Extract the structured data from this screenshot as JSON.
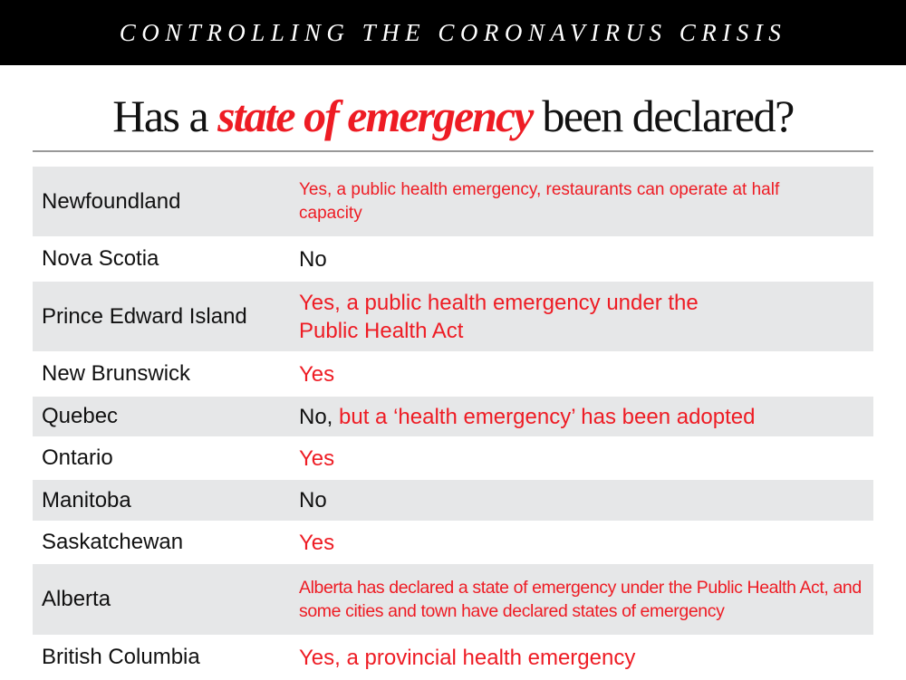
{
  "banner": "CONTROLLING THE CORONAVIRUS CRISIS",
  "title": {
    "before": "Has a ",
    "highlight": "state of emergency",
    "after": " been declared?"
  },
  "colors": {
    "accent": "#ee1c24",
    "row_shade": "#e6e7e8"
  },
  "rows": [
    {
      "province": "Newfoundland",
      "answer": "Yes, a public health emergency, restaurants can operate at half capacity"
    },
    {
      "province": "Nova Scotia",
      "answer": "No"
    },
    {
      "province": "Prince Edward Island",
      "answer": "Yes, a public health emergency under the Public Health Act"
    },
    {
      "province": "New Brunswick",
      "answer": "Yes"
    },
    {
      "province": "Quebec",
      "answer_prefix": "No,",
      "answer": " but a ‘health emergency’ has been adopted"
    },
    {
      "province": "Ontario",
      "answer": "Yes"
    },
    {
      "province": "Manitoba",
      "answer": "No"
    },
    {
      "province": "Saskatchewan",
      "answer": "Yes"
    },
    {
      "province": "Alberta",
      "answer": "Alberta has declared a state of emergency under the Public Health Act, and some cities and town have declared states of emergency"
    },
    {
      "province": "British Columbia",
      "answer": "Yes, a provincial health emergency"
    }
  ]
}
